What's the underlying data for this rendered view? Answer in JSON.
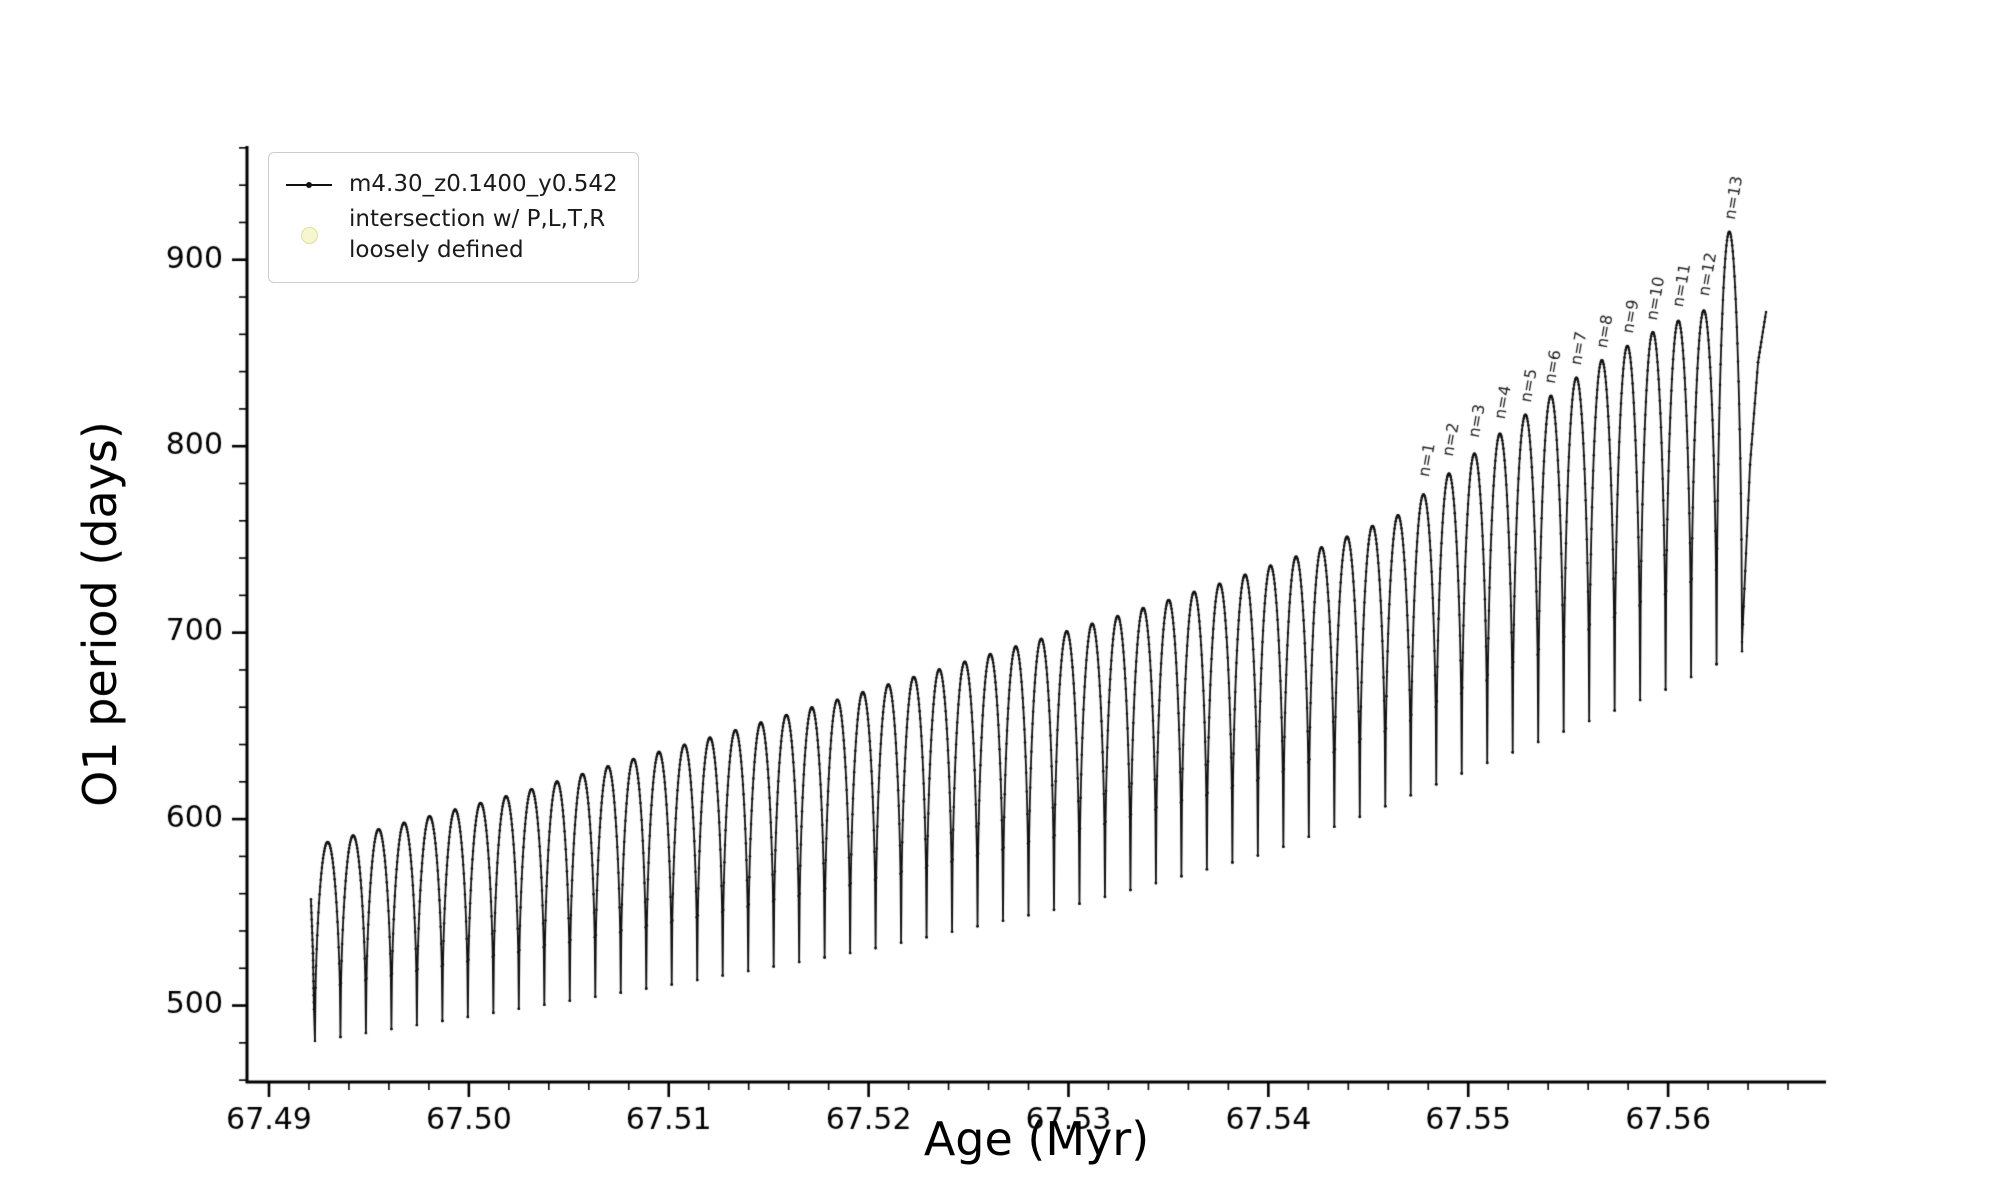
{
  "figure": {
    "background": "#ffffff"
  },
  "legend": {
    "series_label": "m4.30_z0.1400_y0.542",
    "intersection_label": "intersection w/ P,L,T,R\nloosely defined",
    "intersection_marker_color": "#f6f6cf",
    "line_color": "#111111"
  },
  "chart_data": {
    "type": "line",
    "title": "",
    "xlabel": "Age (Myr)",
    "ylabel": "O1 period (days)",
    "xlim": [
      67.4889,
      67.5679
    ],
    "ylim": [
      459,
      961
    ],
    "grid": false,
    "legend_position": "upper left",
    "xticks": [
      {
        "v": 67.49,
        "label": "67.49"
      },
      {
        "v": 67.5,
        "label": "67.50"
      },
      {
        "v": 67.51,
        "label": "67.51"
      },
      {
        "v": 67.52,
        "label": "67.52"
      },
      {
        "v": 67.53,
        "label": "67.53"
      },
      {
        "v": 67.54,
        "label": "67.54"
      },
      {
        "v": 67.55,
        "label": "67.55"
      },
      {
        "v": 67.56,
        "label": "67.56"
      }
    ],
    "yticks": [
      {
        "v": 500,
        "label": "500"
      },
      {
        "v": 600,
        "label": "600"
      },
      {
        "v": 700,
        "label": "700"
      },
      {
        "v": 800,
        "label": "800"
      },
      {
        "v": 900,
        "label": "900"
      }
    ],
    "x_minor_step": 0.002,
    "y_minor_step": 20,
    "series": [
      {
        "name": "m4.30_z0.1400_y0.542",
        "color": "#111111",
        "style": "pulsation-track",
        "pulses": {
          "x_start": 67.4923,
          "x_end": 67.5637,
          "count": 56,
          "top_exponent": 0.5,
          "peak_envelope": [
            [
              67.4923,
              586
            ],
            [
              67.4975,
              600
            ],
            [
              67.5025,
              614
            ],
            [
              67.5075,
              630
            ],
            [
              67.5125,
              645
            ],
            [
              67.5175,
              661
            ],
            [
              67.5225,
              677
            ],
            [
              67.5275,
              693
            ],
            [
              67.5325,
              709
            ],
            [
              67.5375,
              726
            ],
            [
              67.5425,
              745
            ],
            [
              67.5465,
              763
            ],
            [
              67.549,
              785
            ],
            [
              67.5515,
              806
            ],
            [
              67.554,
              826
            ],
            [
              67.5565,
              845
            ],
            [
              67.559,
              860
            ],
            [
              67.5615,
              872
            ],
            [
              67.5637,
              878
            ]
          ],
          "valley_envelope": [
            [
              67.4923,
              481
            ],
            [
              67.5,
              494
            ],
            [
              67.51,
              511
            ],
            [
              67.52,
              530
            ],
            [
              67.53,
              553
            ],
            [
              67.54,
              582
            ],
            [
              67.545,
              603
            ],
            [
              67.55,
              626
            ],
            [
              67.555,
              648
            ],
            [
              67.56,
              670
            ],
            [
              67.5637,
              690
            ]
          ],
          "special_peaks": [
            [
              67.5629,
              915
            ]
          ]
        },
        "lead_points": [
          [
            67.4921,
            557
          ],
          [
            67.4922,
            528
          ],
          [
            67.49225,
            498
          ]
        ],
        "tail_points": [
          [
            67.5637,
            695
          ],
          [
            67.5641,
            790
          ],
          [
            67.5645,
            845
          ],
          [
            67.5649,
            872
          ]
        ]
      }
    ],
    "annotations": [
      {
        "label": "n=1",
        "x": 67.5478,
        "y": 782
      },
      {
        "label": "n=2",
        "x": 67.549,
        "y": 793
      },
      {
        "label": "n=3",
        "x": 67.5503,
        "y": 803
      },
      {
        "label": "n=4",
        "x": 67.5516,
        "y": 813
      },
      {
        "label": "n=5",
        "x": 67.5529,
        "y": 822
      },
      {
        "label": "n=6",
        "x": 67.5541,
        "y": 832
      },
      {
        "label": "n=7",
        "x": 67.5554,
        "y": 842
      },
      {
        "label": "n=8",
        "x": 67.5567,
        "y": 851
      },
      {
        "label": "n=9",
        "x": 67.558,
        "y": 859
      },
      {
        "label": "n=10",
        "x": 67.5592,
        "y": 866
      },
      {
        "label": "n=11",
        "x": 67.5605,
        "y": 873
      },
      {
        "label": "n=12",
        "x": 67.5618,
        "y": 879
      },
      {
        "label": "n=13",
        "x": 67.5631,
        "y": 920
      }
    ],
    "annotation_rotation_deg": 80
  }
}
